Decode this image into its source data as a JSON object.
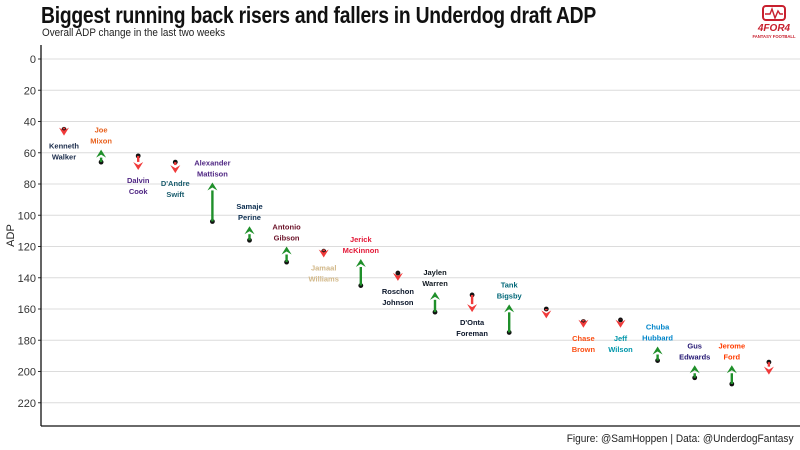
{
  "header": {
    "title": "Biggest running back risers and fallers in Underdog draft ADP",
    "subtitle": "Overall ADP change in the last two weeks"
  },
  "logo": {
    "name": "4for4-fantasy-football-logo",
    "text_main": "4FOR4",
    "text_sub": "FANTASY FOOTBALL",
    "color": "#c8202e"
  },
  "caption": "Figure: @SamHoppen | Data: @UnderdogFantasy",
  "colors": {
    "riser": "#1f8f2a",
    "faller": "#f03a3a",
    "point": "#111111"
  },
  "chart_data": {
    "type": "scatter",
    "title": "Biggest running back risers and fallers in Underdog draft ADP",
    "subtitle": "Overall ADP change in the last two weeks",
    "xlabel": "",
    "ylabel": "ADP",
    "ylim": [
      0,
      233
    ],
    "y_reversed": true,
    "y_ticks": [
      0,
      20,
      40,
      60,
      80,
      100,
      120,
      140,
      160,
      180,
      200,
      220
    ],
    "grid": "horizontal",
    "series": [
      {
        "points": [
          {
            "label": "Kenneth\nWalker",
            "color": "#1a2b4a",
            "old_adp": 45,
            "new_adp": 49,
            "label_pos": "below"
          },
          {
            "label": "Joe\nMixon",
            "color": "#e8601c",
            "old_adp": 66,
            "new_adp": 58,
            "label_pos": "above"
          },
          {
            "label": "Dalvin\nCook",
            "color": "#4f2683",
            "old_adp": 62,
            "new_adp": 71,
            "label_pos": "below"
          },
          {
            "label": "D'Andre\nSwift",
            "color": "#1b5d6e",
            "old_adp": 66,
            "new_adp": 73,
            "label_pos": "below"
          },
          {
            "label": "Alexander\nMattison",
            "color": "#4f2683",
            "old_adp": 104,
            "new_adp": 79,
            "label_pos": "above"
          },
          {
            "label": "Samaje\nPerine",
            "color": "#0b2d4f",
            "old_adp": 116,
            "new_adp": 107,
            "label_pos": "above"
          },
          {
            "label": "Antonio\nGibson",
            "color": "#6b1228",
            "old_adp": 130,
            "new_adp": 120,
            "label_pos": "above"
          },
          {
            "label": "Jamaal\nWilliams",
            "color": "#d2b889",
            "old_adp": 123,
            "new_adp": 127,
            "label_pos": "below"
          },
          {
            "label": "Jerick\nMcKinnon",
            "color": "#e31837",
            "old_adp": 145,
            "new_adp": 128,
            "label_pos": "above"
          },
          {
            "label": "Roschon\nJohnson",
            "color": "#0b162a",
            "old_adp": 137,
            "new_adp": 142,
            "label_pos": "below"
          },
          {
            "label": "Jaylen\nWarren",
            "color": "#101820",
            "old_adp": 162,
            "new_adp": 149,
            "label_pos": "above"
          },
          {
            "label": "D'Onta\nForeman",
            "color": "#0b162a",
            "old_adp": 151,
            "new_adp": 162,
            "label_pos": "below"
          },
          {
            "label": "Tank\nBigsby",
            "color": "#006778",
            "old_adp": 175,
            "new_adp": 157,
            "label_pos": "above"
          },
          {
            "label": "",
            "color": "#111111",
            "old_adp": 160,
            "new_adp": 166,
            "label_pos": "below"
          },
          {
            "label": "Chase\nBrown",
            "color": "#fb4f14",
            "old_adp": 168,
            "new_adp": 172,
            "label_pos": "below"
          },
          {
            "label": "Jeff\nWilson",
            "color": "#0096aa",
            "old_adp": 167,
            "new_adp": 172,
            "label_pos": "below"
          },
          {
            "label": "Chuba\nHubbard",
            "color": "#0085ca",
            "old_adp": 193,
            "new_adp": 184,
            "label_pos": "above"
          },
          {
            "label": "Gus\nEdwards",
            "color": "#241773",
            "old_adp": 204,
            "new_adp": 196,
            "label_pos": "above"
          },
          {
            "label": "Jerome\nFord",
            "color": "#ff3c00",
            "old_adp": 208,
            "new_adp": 196,
            "label_pos": "above"
          },
          {
            "label": "",
            "color": "#111111",
            "old_adp": 194,
            "new_adp": 202,
            "label_pos": "below"
          }
        ]
      }
    ]
  }
}
